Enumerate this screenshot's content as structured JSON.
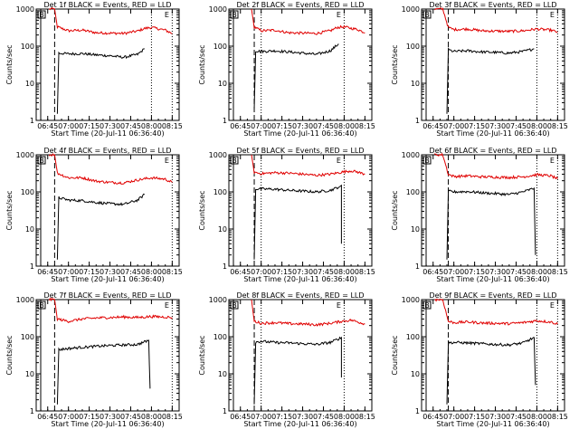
{
  "chart_data": [
    {
      "type": "line",
      "title": "Det 1f BLACK = Events, RED = LLD",
      "xlabel": "Start Time (20-Jul-11 06:36:40)",
      "ylabel": "Counts/sec",
      "x_ticks": [
        "06:45",
        "07:00",
        "07:15",
        "07:30",
        "07:45",
        "08:00",
        "08:15"
      ],
      "y_ticks": [
        "1",
        "10",
        "100",
        "1000"
      ],
      "y_scale": "log",
      "ylim": [
        1,
        1000
      ],
      "xlim": [
        "06:36:40",
        "08:20"
      ],
      "box_labels": [
        "B",
        "E"
      ],
      "series": [
        {
          "name": "LLD",
          "color": "#e00000",
          "x": [
            "06:46",
            "06:50",
            "06:52",
            "07:00",
            "07:10",
            "07:20",
            "07:30",
            "07:40",
            "07:50",
            "07:55",
            "08:00",
            "08:10",
            "08:15"
          ],
          "values": [
            1000,
            1000,
            330,
            260,
            270,
            230,
            225,
            220,
            255,
            300,
            320,
            270,
            220
          ]
        },
        {
          "name": "Events",
          "color": "#000000",
          "x": [
            "06:52",
            "06:53",
            "07:00",
            "07:10",
            "07:20",
            "07:30",
            "07:40",
            "07:50",
            "07:55"
          ],
          "values": [
            1.5,
            65,
            62,
            63,
            58,
            55,
            50,
            60,
            85
          ]
        }
      ]
    },
    {
      "type": "line",
      "title": "Det 2f BLACK = Events, RED = LLD",
      "xlabel": "Start Time (20-Jul-11 06:36:40)",
      "ylabel": "Counts/sec",
      "x_ticks": [
        "06:45",
        "07:00",
        "07:15",
        "07:30",
        "07:45",
        "08:00",
        "08:15"
      ],
      "y_ticks": [
        "1",
        "10",
        "100",
        "1000"
      ],
      "y_scale": "log",
      "ylim": [
        1,
        1000
      ],
      "xlim": [
        "06:36:40",
        "08:20"
      ],
      "box_labels": [
        "B",
        "E"
      ],
      "series": [
        {
          "name": "LLD",
          "color": "#e00000",
          "x": [
            "06:53",
            "06:55",
            "07:00",
            "07:10",
            "07:20",
            "07:30",
            "07:40",
            "07:50",
            "07:55",
            "08:00",
            "08:10",
            "08:15"
          ],
          "values": [
            1000,
            330,
            260,
            270,
            230,
            225,
            220,
            260,
            320,
            330,
            280,
            230
          ]
        },
        {
          "name": "Events",
          "color": "#000000",
          "x": [
            "06:55",
            "06:56",
            "07:00",
            "07:10",
            "07:20",
            "07:30",
            "07:40",
            "07:50",
            "07:56"
          ],
          "values": [
            2,
            75,
            72,
            75,
            70,
            65,
            60,
            75,
            115
          ]
        }
      ]
    },
    {
      "type": "line",
      "title": "Det 3f BLACK = Events, RED = LLD",
      "xlabel": "Start Time (20-Jul-11 06:36:40)",
      "ylabel": "Counts/sec",
      "x_ticks": [
        "06:45",
        "07:00",
        "07:15",
        "07:30",
        "07:45",
        "08:00",
        "08:15"
      ],
      "y_ticks": [
        "1",
        "10",
        "100",
        "1000"
      ],
      "y_scale": "log",
      "ylim": [
        1,
        1000
      ],
      "xlim": [
        "06:36:40",
        "08:20"
      ],
      "box_labels": [
        "B",
        "E"
      ],
      "series": [
        {
          "name": "LLD",
          "color": "#e00000",
          "x": [
            "06:46",
            "06:52",
            "06:56",
            "07:00",
            "07:10",
            "07:20",
            "07:30",
            "07:40",
            "07:50",
            "08:00",
            "08:10",
            "08:15"
          ],
          "values": [
            1000,
            1000,
            320,
            280,
            290,
            260,
            255,
            250,
            260,
            290,
            270,
            240
          ]
        },
        {
          "name": "Events",
          "color": "#000000",
          "x": [
            "06:55",
            "06:56",
            "07:00",
            "07:10",
            "07:20",
            "07:30",
            "07:40",
            "07:50",
            "07:58"
          ],
          "values": [
            1.5,
            80,
            72,
            75,
            70,
            68,
            65,
            72,
            85
          ]
        }
      ]
    },
    {
      "type": "line",
      "title": "Det 4f BLACK = Events, RED = LLD",
      "xlabel": "Start Time (20-Jul-11 06:36:40)",
      "ylabel": "Counts/sec",
      "x_ticks": [
        "06:45",
        "07:00",
        "07:15",
        "07:30",
        "07:45",
        "08:00",
        "08:15"
      ],
      "y_ticks": [
        "1",
        "10",
        "100",
        "1000"
      ],
      "y_scale": "log",
      "ylim": [
        1,
        1000
      ],
      "xlim": [
        "06:36:40",
        "08:20"
      ],
      "box_labels": [
        "B",
        "E"
      ],
      "series": [
        {
          "name": "LLD",
          "color": "#e00000",
          "x": [
            "06:46",
            "06:50",
            "06:52",
            "07:00",
            "07:10",
            "07:20",
            "07:30",
            "07:40",
            "07:50",
            "08:00",
            "08:10",
            "08:15"
          ],
          "values": [
            1000,
            1000,
            320,
            240,
            240,
            195,
            180,
            175,
            210,
            240,
            220,
            180
          ]
        },
        {
          "name": "Events",
          "color": "#000000",
          "x": [
            "06:52",
            "06:53",
            "07:00",
            "07:10",
            "07:20",
            "07:30",
            "07:40",
            "07:50",
            "07:55"
          ],
          "values": [
            1.5,
            70,
            60,
            58,
            52,
            48,
            46,
            60,
            85
          ]
        }
      ]
    },
    {
      "type": "line",
      "title": "Det 5f BLACK = Events, RED = LLD",
      "xlabel": "Start Time (20-Jul-11 06:36:40)",
      "ylabel": "Counts/sec",
      "x_ticks": [
        "06:45",
        "07:00",
        "07:15",
        "07:30",
        "07:45",
        "08:00",
        "08:15"
      ],
      "y_ticks": [
        "1",
        "10",
        "100",
        "1000"
      ],
      "y_scale": "log",
      "ylim": [
        1,
        1000
      ],
      "xlim": [
        "06:36:40",
        "08:20"
      ],
      "box_labels": [
        "B",
        "E"
      ],
      "series": [
        {
          "name": "LLD",
          "color": "#e00000",
          "x": [
            "06:53",
            "06:55",
            "07:00",
            "07:10",
            "07:20",
            "07:30",
            "07:40",
            "07:50",
            "07:58",
            "08:05",
            "08:10",
            "08:15"
          ],
          "values": [
            1000,
            340,
            310,
            330,
            320,
            300,
            280,
            300,
            340,
            370,
            340,
            300
          ]
        },
        {
          "name": "Events",
          "color": "#000000",
          "x": [
            "06:55",
            "06:56",
            "07:00",
            "07:10",
            "07:20",
            "07:30",
            "07:40",
            "07:50",
            "07:57",
            "07:58",
            "07:58"
          ],
          "values": [
            1.5,
            120,
            120,
            118,
            110,
            105,
            100,
            110,
            140,
            150,
            4
          ]
        }
      ]
    },
    {
      "type": "line",
      "title": "Det 6f BLACK = Events, RED = LLD",
      "xlabel": "Start Time (20-Jul-11 06:36:40)",
      "ylabel": "Counts/sec",
      "x_ticks": [
        "06:45",
        "07:00",
        "07:15",
        "07:30",
        "07:45",
        "08:00",
        "08:15"
      ],
      "y_ticks": [
        "1",
        "10",
        "100",
        "1000"
      ],
      "y_scale": "log",
      "ylim": [
        1,
        1000
      ],
      "xlim": [
        "06:36:40",
        "08:20"
      ],
      "box_labels": [
        "B",
        "E"
      ],
      "series": [
        {
          "name": "LLD",
          "color": "#e00000",
          "x": [
            "06:46",
            "06:52",
            "06:56",
            "07:00",
            "07:10",
            "07:20",
            "07:30",
            "07:40",
            "07:50",
            "08:00",
            "08:10",
            "08:15"
          ],
          "values": [
            1000,
            1000,
            300,
            260,
            270,
            255,
            250,
            245,
            255,
            290,
            270,
            225
          ]
        },
        {
          "name": "Events",
          "color": "#000000",
          "x": [
            "06:55",
            "06:56",
            "07:00",
            "07:10",
            "07:20",
            "07:30",
            "07:40",
            "07:50",
            "07:58",
            "07:59"
          ],
          "values": [
            1.5,
            105,
            100,
            102,
            95,
            90,
            85,
            100,
            125,
            2
          ]
        }
      ]
    },
    {
      "type": "line",
      "title": "Det 7f BLACK = Events, RED = LLD",
      "xlabel": "Start Time (20-Jul-11 06:36:40)",
      "ylabel": "Counts/sec",
      "x_ticks": [
        "06:45",
        "07:00",
        "07:15",
        "07:30",
        "07:45",
        "08:00",
        "08:15"
      ],
      "y_ticks": [
        "1",
        "10",
        "100",
        "1000"
      ],
      "y_scale": "log",
      "ylim": [
        1,
        1000
      ],
      "xlim": [
        "06:36:40",
        "08:20"
      ],
      "box_labels": [
        "B",
        "E"
      ],
      "series": [
        {
          "name": "LLD",
          "color": "#e00000",
          "x": [
            "06:46",
            "06:50",
            "06:52",
            "07:00",
            "07:10",
            "07:20",
            "07:30",
            "07:40",
            "07:50",
            "08:00",
            "08:10",
            "08:15"
          ],
          "values": [
            1000,
            1000,
            300,
            260,
            300,
            320,
            330,
            340,
            330,
            350,
            340,
            330
          ]
        },
        {
          "name": "Events",
          "color": "#000000",
          "x": [
            "06:52",
            "06:53",
            "07:00",
            "07:10",
            "07:20",
            "07:30",
            "07:40",
            "07:50",
            "07:58",
            "07:59"
          ],
          "values": [
            1.5,
            45,
            48,
            52,
            55,
            58,
            60,
            62,
            80,
            4
          ]
        }
      ]
    },
    {
      "type": "line",
      "title": "Det 8f BLACK = Events, RED = LLD",
      "xlabel": "Start Time (20-Jul-11 06:36:40)",
      "ylabel": "Counts/sec",
      "x_ticks": [
        "06:45",
        "07:00",
        "07:15",
        "07:30",
        "07:45",
        "08:00",
        "08:15"
      ],
      "y_ticks": [
        "1",
        "10",
        "100",
        "1000"
      ],
      "y_scale": "log",
      "ylim": [
        1,
        1000
      ],
      "xlim": [
        "06:36:40",
        "08:20"
      ],
      "box_labels": [
        "B",
        "E"
      ],
      "series": [
        {
          "name": "LLD",
          "color": "#e00000",
          "x": [
            "06:53",
            "06:55",
            "07:00",
            "07:10",
            "07:20",
            "07:30",
            "07:40",
            "07:50",
            "07:58",
            "08:05",
            "08:10",
            "08:15"
          ],
          "values": [
            1000,
            260,
            230,
            240,
            225,
            220,
            210,
            230,
            260,
            280,
            250,
            220
          ]
        },
        {
          "name": "Events",
          "color": "#000000",
          "x": [
            "06:55",
            "06:56",
            "07:00",
            "07:10",
            "07:20",
            "07:30",
            "07:40",
            "07:50",
            "07:58",
            "07:58"
          ],
          "values": [
            1.5,
            72,
            75,
            70,
            68,
            65,
            62,
            70,
            95,
            8
          ]
        }
      ]
    },
    {
      "type": "line",
      "title": "Det 9f BLACK = Events, RED = LLD",
      "xlabel": "Start Time (20-Jul-11 06:36:40)",
      "ylabel": "Counts/sec",
      "x_ticks": [
        "06:45",
        "07:00",
        "07:15",
        "07:30",
        "07:45",
        "08:00",
        "08:15"
      ],
      "y_ticks": [
        "1",
        "10",
        "100",
        "1000"
      ],
      "y_scale": "log",
      "ylim": [
        1,
        1000
      ],
      "xlim": [
        "06:36:40",
        "08:20"
      ],
      "box_labels": [
        "B",
        "E"
      ],
      "series": [
        {
          "name": "LLD",
          "color": "#e00000",
          "x": [
            "06:46",
            "06:52",
            "06:56",
            "07:00",
            "07:10",
            "07:20",
            "07:30",
            "07:40",
            "07:50",
            "08:00",
            "08:10",
            "08:15"
          ],
          "values": [
            1000,
            1000,
            260,
            240,
            250,
            235,
            230,
            225,
            240,
            270,
            250,
            220
          ]
        },
        {
          "name": "Events",
          "color": "#000000",
          "x": [
            "06:55",
            "06:56",
            "07:00",
            "07:10",
            "07:20",
            "07:30",
            "07:40",
            "07:50",
            "07:58",
            "07:59"
          ],
          "values": [
            1.5,
            68,
            70,
            68,
            65,
            62,
            60,
            68,
            95,
            5
          ]
        }
      ]
    }
  ]
}
